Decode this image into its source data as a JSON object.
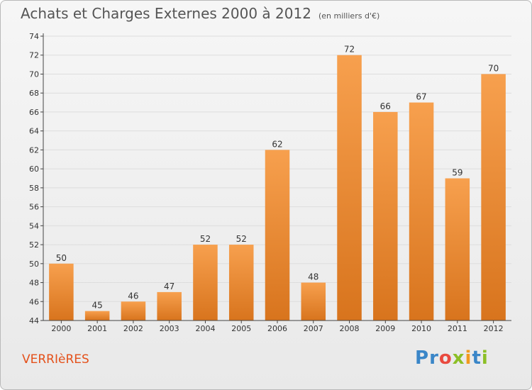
{
  "title": "Achats et Charges Externes 2000 à 2012",
  "title_unit": "(en milliers d'€)",
  "commune": "VERRIèRES",
  "brand": {
    "letters": [
      {
        "ch": "P",
        "color": "#3a86c8"
      },
      {
        "ch": "r",
        "color": "#3a86c8"
      },
      {
        "ch": "o",
        "color": "#e94a3f"
      },
      {
        "ch": "x",
        "color": "#8cbf26"
      },
      {
        "ch": "i",
        "color": "#f29a1e"
      },
      {
        "ch": "t",
        "color": "#3a86c8"
      },
      {
        "ch": "i",
        "color": "#8cbf26"
      }
    ]
  },
  "colors": {
    "bar_top": "#f7a04e",
    "bar_bottom": "#d8741d",
    "axis": "#444444",
    "grid": "#dddddd",
    "text": "#333333"
  },
  "chart_data": {
    "type": "bar",
    "categories": [
      "2000",
      "2001",
      "2002",
      "2003",
      "2004",
      "2005",
      "2006",
      "2007",
      "2008",
      "2009",
      "2010",
      "2011",
      "2012"
    ],
    "values": [
      50,
      45,
      46,
      47,
      52,
      52,
      62,
      48,
      72,
      66,
      67,
      59,
      70
    ],
    "ylim": [
      44,
      74
    ],
    "yticks": [
      44,
      46,
      48,
      50,
      52,
      54,
      56,
      58,
      60,
      62,
      64,
      66,
      68,
      70,
      72,
      74
    ],
    "grid": true,
    "data_labels": true
  }
}
